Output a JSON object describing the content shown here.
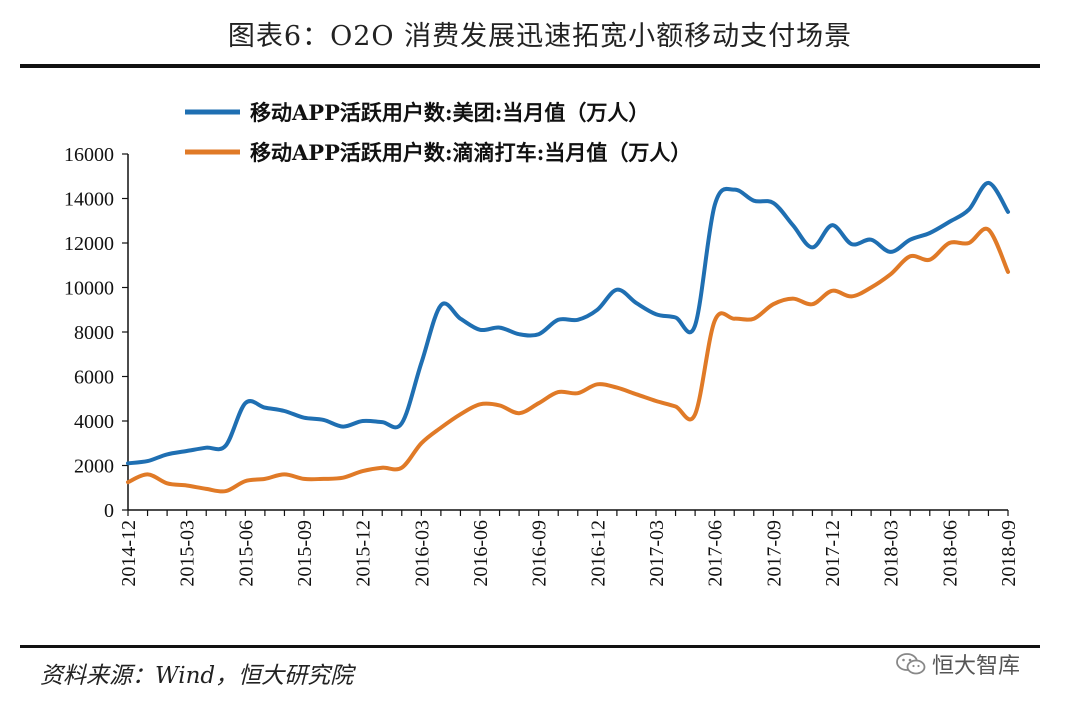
{
  "header": {
    "title": "图表6：O2O 消费发展迅速拓宽小额移动支付场景"
  },
  "footer": {
    "source": "资料来源：Wind，恒大研究院",
    "brand": "恒大智库"
  },
  "icons": {
    "brand_icon": "wechat-icon"
  },
  "colors": {
    "meituan": "#1F6FB2",
    "didi": "#E07A27",
    "axis": "#111111"
  },
  "chart_data": {
    "type": "line",
    "title": "",
    "xlabel": "",
    "ylabel": "",
    "ylim": [
      0,
      16000
    ],
    "yticks": [
      0,
      2000,
      4000,
      6000,
      8000,
      10000,
      12000,
      14000,
      16000
    ],
    "grid": false,
    "legend_position": "top",
    "x": [
      "2014-12",
      "2015-01",
      "2015-02",
      "2015-03",
      "2015-04",
      "2015-05",
      "2015-06",
      "2015-07",
      "2015-08",
      "2015-09",
      "2015-10",
      "2015-11",
      "2015-12",
      "2016-01",
      "2016-02",
      "2016-03",
      "2016-04",
      "2016-05",
      "2016-06",
      "2016-07",
      "2016-08",
      "2016-09",
      "2016-10",
      "2016-11",
      "2016-12",
      "2017-01",
      "2017-02",
      "2017-03",
      "2017-04",
      "2017-05",
      "2017-06",
      "2017-07",
      "2017-08",
      "2017-09",
      "2017-10",
      "2017-11",
      "2017-12",
      "2018-01",
      "2018-02",
      "2018-03",
      "2018-04",
      "2018-05",
      "2018-06",
      "2018-07",
      "2018-08",
      "2018-09"
    ],
    "xticks": [
      "2014-12",
      "2015-03",
      "2015-06",
      "2015-09",
      "2015-12",
      "2016-03",
      "2016-06",
      "2016-09",
      "2016-12",
      "2017-03",
      "2017-06",
      "2017-09",
      "2017-12",
      "2018-03",
      "2018-06",
      "2018-09"
    ],
    "series": [
      {
        "name": "移动APP活跃用户数:美团:当月值（万人）",
        "color": "#1F6FB2",
        "values": [
          2100,
          2200,
          2500,
          2650,
          2800,
          2900,
          4800,
          4600,
          4450,
          4150,
          4050,
          3750,
          4000,
          3950,
          3900,
          6600,
          9200,
          8600,
          8100,
          8200,
          7900,
          7900,
          8550,
          8550,
          9000,
          9900,
          9300,
          8800,
          8650,
          8300,
          13700,
          14400,
          13900,
          13800,
          12800,
          11800,
          12800,
          11950,
          12150,
          11600,
          12150,
          12450,
          12950,
          13500,
          14700,
          13400
        ]
      },
      {
        "name": "移动APP活跃用户数:滴滴打车:当月值（万人）",
        "color": "#E07A27",
        "values": [
          1250,
          1600,
          1200,
          1100,
          950,
          850,
          1300,
          1400,
          1600,
          1400,
          1400,
          1450,
          1750,
          1900,
          1900,
          3000,
          3700,
          4300,
          4750,
          4700,
          4350,
          4800,
          5300,
          5250,
          5650,
          5500,
          5200,
          4900,
          4650,
          4300,
          8500,
          8600,
          8600,
          9250,
          9500,
          9250,
          9850,
          9600,
          10000,
          10600,
          11400,
          11250,
          12000,
          12000,
          12600,
          10700
        ]
      }
    ]
  }
}
